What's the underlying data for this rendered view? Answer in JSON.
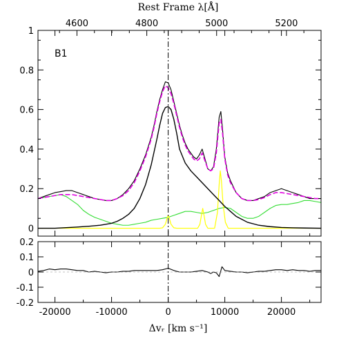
{
  "chart_data": {
    "type": "line",
    "panel_tag": "B1",
    "xlabel": "Δvᵣ [km s⁻¹]",
    "x2label": "Rest Frame λ[Å]",
    "xlim": [
      -23000,
      27000
    ],
    "bottom_xticks": [
      -20000,
      -10000,
      0,
      10000,
      20000
    ],
    "top_xticks": [
      4600,
      4800,
      5000,
      5200
    ],
    "top_axis_reference_wavelength": 4861.3,
    "vertical_marker_x": 0,
    "colors": {
      "observed": "#000000",
      "model_total": "#e000e0",
      "broad_component": "#000000",
      "fe_template": "#33dd33",
      "narrow_lines": "#ffff00"
    },
    "main_panel": {
      "ylim": [
        -0.04,
        1.0
      ],
      "yticks": [
        0,
        0.2,
        0.4,
        0.6,
        0.8,
        1
      ],
      "ytick_labels": [
        "0",
        "0.2",
        "0.4",
        "0.6",
        "0.8",
        "1"
      ],
      "series": [
        {
          "key": "observed",
          "x": [
            -23000,
            -21000,
            -20000,
            -19000,
            -18000,
            -17000,
            -16000,
            -15000,
            -14000,
            -13000,
            -12000,
            -11000,
            -10000,
            -9000,
            -8000,
            -7000,
            -6000,
            -5000,
            -4000,
            -3000,
            -2500,
            -2000,
            -1500,
            -1000,
            -500,
            0,
            500,
            1000,
            1500,
            2000,
            2500,
            3000,
            3500,
            4000,
            4500,
            5000,
            5500,
            6000,
            6500,
            7000,
            7500,
            8000,
            8500,
            9000,
            9300,
            9600,
            10000,
            10500,
            11000,
            12000,
            13000,
            14000,
            15000,
            16000,
            17000,
            18000,
            19000,
            20000,
            21000,
            22000,
            23000,
            24000,
            25000,
            26000,
            27000
          ],
          "y": [
            0.15,
            0.17,
            0.18,
            0.185,
            0.19,
            0.19,
            0.18,
            0.17,
            0.16,
            0.15,
            0.145,
            0.14,
            0.14,
            0.15,
            0.17,
            0.2,
            0.24,
            0.3,
            0.37,
            0.46,
            0.52,
            0.59,
            0.65,
            0.7,
            0.74,
            0.735,
            0.7,
            0.64,
            0.58,
            0.52,
            0.47,
            0.43,
            0.4,
            0.38,
            0.36,
            0.35,
            0.37,
            0.4,
            0.35,
            0.3,
            0.29,
            0.31,
            0.4,
            0.56,
            0.59,
            0.5,
            0.36,
            0.28,
            0.24,
            0.18,
            0.15,
            0.14,
            0.14,
            0.15,
            0.16,
            0.18,
            0.19,
            0.2,
            0.19,
            0.18,
            0.17,
            0.16,
            0.15,
            0.15,
            0.15
          ]
        },
        {
          "key": "model_total",
          "x": [
            -23000,
            -21000,
            -20000,
            -19000,
            -18000,
            -17000,
            -16000,
            -15000,
            -14000,
            -13000,
            -12000,
            -11000,
            -10000,
            -9000,
            -8000,
            -7000,
            -6000,
            -5000,
            -4000,
            -3000,
            -2500,
            -2000,
            -1500,
            -1000,
            -500,
            0,
            500,
            1000,
            1500,
            2000,
            2500,
            3000,
            3500,
            4000,
            4500,
            5000,
            5500,
            6000,
            6500,
            7000,
            7500,
            8000,
            8500,
            9000,
            9300,
            9600,
            10000,
            10500,
            11000,
            12000,
            13000,
            14000,
            15000,
            16000,
            17000,
            18000,
            19000,
            20000,
            21000,
            22000,
            23000,
            24000,
            25000,
            26000,
            27000
          ],
          "y": [
            0.15,
            0.16,
            0.165,
            0.17,
            0.17,
            0.17,
            0.165,
            0.16,
            0.155,
            0.15,
            0.145,
            0.14,
            0.14,
            0.15,
            0.165,
            0.19,
            0.23,
            0.29,
            0.36,
            0.45,
            0.51,
            0.58,
            0.64,
            0.69,
            0.72,
            0.71,
            0.68,
            0.63,
            0.57,
            0.51,
            0.46,
            0.42,
            0.39,
            0.37,
            0.35,
            0.34,
            0.35,
            0.38,
            0.34,
            0.3,
            0.29,
            0.3,
            0.38,
            0.53,
            0.55,
            0.48,
            0.35,
            0.27,
            0.23,
            0.18,
            0.15,
            0.14,
            0.14,
            0.145,
            0.155,
            0.17,
            0.18,
            0.18,
            0.175,
            0.17,
            0.165,
            0.16,
            0.155,
            0.15,
            0.15
          ]
        },
        {
          "key": "broad_component",
          "x": [
            -23000,
            -20000,
            -18000,
            -16000,
            -14000,
            -12000,
            -10000,
            -9000,
            -8000,
            -7000,
            -6000,
            -5000,
            -4000,
            -3000,
            -2000,
            -1500,
            -1000,
            -500,
            0,
            500,
            1000,
            1500,
            2000,
            3000,
            4000,
            5000,
            6000,
            7000,
            8000,
            9000,
            10000,
            11000,
            12000,
            13000,
            14000,
            16000,
            18000,
            20000,
            22000,
            24000,
            27000
          ],
          "y": [
            0.0,
            0.0,
            0.003,
            0.006,
            0.01,
            0.015,
            0.025,
            0.035,
            0.05,
            0.07,
            0.1,
            0.15,
            0.22,
            0.32,
            0.45,
            0.52,
            0.58,
            0.61,
            0.615,
            0.6,
            0.55,
            0.48,
            0.4,
            0.33,
            0.29,
            0.26,
            0.23,
            0.2,
            0.17,
            0.14,
            0.11,
            0.085,
            0.06,
            0.045,
            0.03,
            0.015,
            0.008,
            0.004,
            0.002,
            0.001,
            0.0
          ]
        },
        {
          "key": "fe_template",
          "x": [
            -23000,
            -21000,
            -20000,
            -19000,
            -18000,
            -17000,
            -16000,
            -15000,
            -14000,
            -13000,
            -12000,
            -11000,
            -10000,
            -9000,
            -8000,
            -7000,
            -6000,
            -5000,
            -4000,
            -3000,
            -2000,
            -1000,
            0,
            1000,
            2000,
            3000,
            4000,
            5000,
            6000,
            7000,
            8000,
            9000,
            10000,
            11000,
            12000,
            13000,
            14000,
            15000,
            16000,
            17000,
            18000,
            19000,
            20000,
            21000,
            22000,
            23000,
            24000,
            25000,
            26000,
            27000
          ],
          "y": [
            0.15,
            0.16,
            0.165,
            0.17,
            0.16,
            0.14,
            0.12,
            0.09,
            0.07,
            0.055,
            0.045,
            0.035,
            0.025,
            0.02,
            0.015,
            0.015,
            0.02,
            0.025,
            0.03,
            0.04,
            0.045,
            0.05,
            0.055,
            0.065,
            0.075,
            0.085,
            0.085,
            0.08,
            0.075,
            0.08,
            0.09,
            0.1,
            0.105,
            0.1,
            0.08,
            0.06,
            0.05,
            0.05,
            0.06,
            0.08,
            0.1,
            0.115,
            0.12,
            0.12,
            0.125,
            0.13,
            0.14,
            0.14,
            0.135,
            0.13
          ]
        },
        {
          "key": "narrow_lines",
          "x": [
            -23000,
            -1500,
            -1000,
            -500,
            -200,
            0,
            200,
            500,
            1000,
            1500,
            5200,
            5600,
            5900,
            6100,
            6300,
            6600,
            7000,
            8200,
            8700,
            9000,
            9200,
            9400,
            9700,
            10100,
            10600,
            27000
          ],
          "y": [
            0,
            0,
            0.002,
            0.02,
            0.05,
            0.065,
            0.05,
            0.02,
            0.002,
            0,
            0,
            0.02,
            0.07,
            0.1,
            0.07,
            0.02,
            0,
            0,
            0.08,
            0.22,
            0.29,
            0.24,
            0.12,
            0.03,
            0,
            0
          ]
        }
      ]
    },
    "residual_panel": {
      "ylim": [
        -0.2,
        0.2
      ],
      "yticks": [
        -0.2,
        -0.1,
        0,
        0.1,
        0.2
      ],
      "ytick_labels": [
        "-0.2",
        "-0.1",
        "0",
        "0.1",
        "0.2"
      ],
      "series": [
        {
          "key": "residual",
          "x": [
            -23000,
            -22000,
            -21000,
            -20000,
            -19000,
            -18000,
            -17000,
            -16000,
            -15000,
            -14000,
            -13000,
            -12000,
            -11000,
            -10000,
            -9000,
            -8000,
            -7000,
            -6000,
            -5000,
            -4000,
            -3000,
            -2000,
            -1000,
            0,
            1000,
            2000,
            3000,
            4000,
            5000,
            6000,
            7000,
            7500,
            8000,
            8500,
            9000,
            9500,
            10000,
            11000,
            12000,
            13000,
            14000,
            15000,
            16000,
            17000,
            18000,
            19000,
            20000,
            21000,
            22000,
            23000,
            24000,
            25000,
            26000,
            27000
          ],
          "y": [
            0.005,
            0.01,
            0.02,
            0.015,
            0.02,
            0.02,
            0.015,
            0.01,
            0.01,
            0.0,
            0.005,
            0.0,
            -0.005,
            0.0,
            0.0,
            0.005,
            0.005,
            0.01,
            0.01,
            0.01,
            0.01,
            0.01,
            0.015,
            0.025,
            0.01,
            0.0,
            0.0,
            0.0,
            0.005,
            0.01,
            0.0,
            -0.01,
            0.0,
            -0.005,
            -0.03,
            0.035,
            0.01,
            0.005,
            0.0,
            0.0,
            -0.005,
            0.0,
            0.005,
            0.005,
            0.01,
            0.015,
            0.015,
            0.01,
            0.015,
            0.01,
            0.01,
            0.005,
            0.01,
            0.01
          ]
        }
      ]
    }
  }
}
